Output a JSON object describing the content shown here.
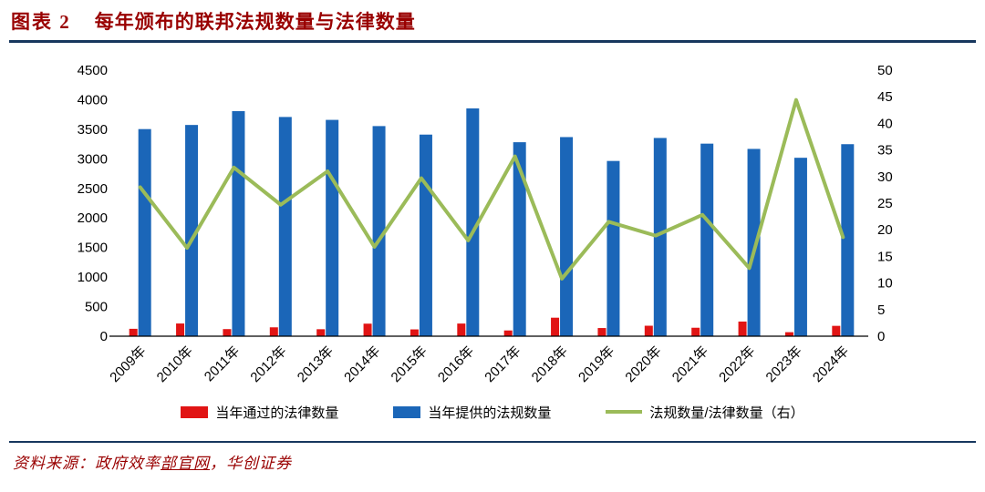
{
  "header": {
    "tag": "图表 2",
    "title": "每年颁布的联邦法规数量与法律数量"
  },
  "colors": {
    "title": "#990000",
    "rule": "#17375e",
    "laws_bar": "#e11414",
    "regs_bar": "#1b66b8",
    "ratio_line": "#9bbb59",
    "axis_text": "#000000"
  },
  "legend": [
    {
      "label": "当年通过的法律数量",
      "type": "bar",
      "color_key": "laws_bar"
    },
    {
      "label": "当年提供的法规数量",
      "type": "bar",
      "color_key": "regs_bar"
    },
    {
      "label": "法规数量/法律数量（右）",
      "type": "line",
      "color_key": "ratio_line"
    }
  ],
  "source": {
    "prefix": "资料来源：政府效率",
    "underlined": "部官网",
    "suffix": "，华创证券"
  },
  "chart_data": {
    "type": "bar",
    "subtype": "bar+line dual axis",
    "title": "每年颁布的联邦法规数量与法律数量",
    "categories": [
      "2009年",
      "2010年",
      "2011年",
      "2012年",
      "2013年",
      "2014年",
      "2015年",
      "2016年",
      "2017年",
      "2018年",
      "2019年",
      "2020年",
      "2021年",
      "2022年",
      "2023年",
      "2024年"
    ],
    "series": [
      {
        "name": "当年通过的法律数量",
        "type": "bar",
        "axis": "left",
        "color_key": "laws_bar",
        "values": [
          125,
          215,
          120,
          150,
          118,
          212,
          115,
          214,
          97,
          313,
          138,
          177,
          143,
          248,
          68,
          175
        ]
      },
      {
        "name": "当年提供的法规数量",
        "type": "bar",
        "axis": "left",
        "color_key": "regs_bar",
        "values": [
          3503,
          3573,
          3807,
          3708,
          3659,
          3554,
          3410,
          3853,
          3281,
          3368,
          2964,
          3353,
          3257,
          3168,
          3018,
          3248
        ]
      },
      {
        "name": "法规数量/法律数量（右）",
        "type": "line",
        "axis": "right",
        "color_key": "ratio_line",
        "values": [
          28.0,
          16.6,
          31.7,
          24.7,
          31.0,
          16.8,
          29.7,
          18.0,
          33.8,
          10.8,
          21.5,
          18.9,
          22.8,
          12.8,
          44.4,
          18.6
        ]
      }
    ],
    "left_axis": {
      "min": 0,
      "max": 4500,
      "step": 500
    },
    "right_axis": {
      "min": 0,
      "max": 50,
      "step": 5
    },
    "grid": false,
    "legend_position": "bottom"
  }
}
